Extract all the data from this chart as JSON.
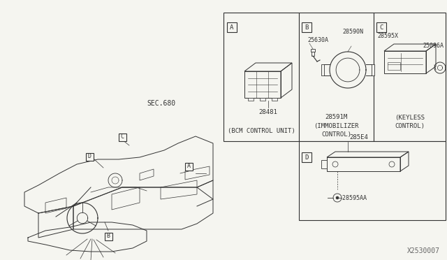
{
  "background_color": "#f5f5f0",
  "line_color": "#333333",
  "text_color": "#333333",
  "watermark": "X2530007",
  "sec_label": "SEC.680",
  "font": "monospace",
  "parts": {
    "A_num": "28481",
    "A_desc1": "(BCM CONTROL UNIT)",
    "B_num1": "25630A",
    "B_num2": "28590N",
    "B_num3": "28591M",
    "B_desc1": "(IMMOBILIZER",
    "B_desc2": "CONTROL)",
    "C_num1": "28595X",
    "C_num2": "25096A",
    "C_desc1": "(KEYLESS",
    "C_desc2": "CONTROL)",
    "D_num1": "285E4",
    "D_num2": "28595AA"
  }
}
